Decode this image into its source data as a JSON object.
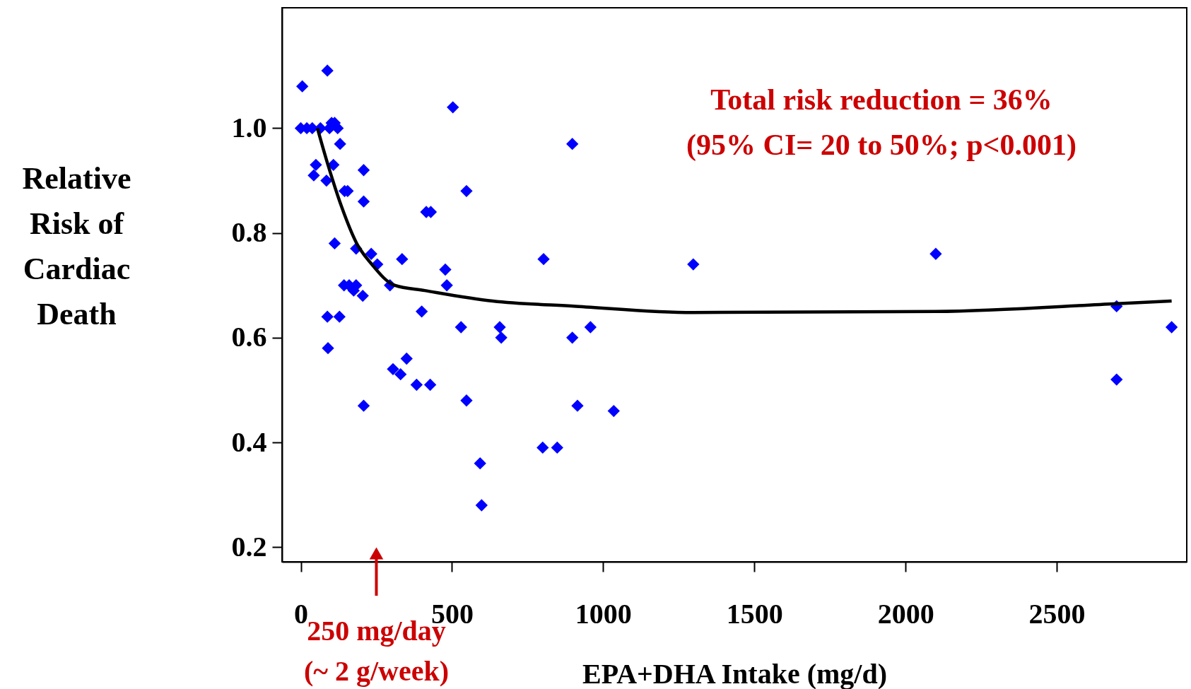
{
  "chart_data": {
    "type": "scatter",
    "xlabel": "EPA+DHA Intake (mg/d)",
    "ylabel": "Relative Risk of Cardiac Death",
    "xlim": [
      -62,
      2930
    ],
    "ylim": [
      0.172,
      1.23
    ],
    "xticks": [
      0,
      500,
      1000,
      1500,
      2000,
      2500
    ],
    "yticks": [
      0.2,
      0.4,
      0.6,
      0.8,
      {
        "value": 1,
        "label": "1.0"
      }
    ],
    "grid": false,
    "marker": "diamond",
    "series": [
      {
        "color": "#0000ff",
        "x": [
          0,
          5,
          20,
          38,
          65,
          88,
          95,
          112,
          122,
          102,
          130,
          50,
          43,
          108,
          85,
          208,
          145,
          155,
          208,
          112,
          183,
          233,
          253,
          335,
          143,
          160,
          183,
          175,
          205,
          295,
          88,
          128,
          90,
          208,
          305,
          330,
          350,
          383,
          428,
          400,
          415,
          430,
          478,
          483,
          503,
          530,
          548,
          548,
          593,
          598,
          658,
          663,
          803,
          800,
          848,
          898,
          898,
          915,
          958,
          1035,
          1298,
          2100,
          2698,
          2698,
          2880
        ],
        "values": [
          1.0,
          1.08,
          1.0,
          1.0,
          1.0,
          1.11,
          1.0,
          1.01,
          1.0,
          1.01,
          0.97,
          0.93,
          0.91,
          0.93,
          0.9,
          0.92,
          0.88,
          0.88,
          0.86,
          0.78,
          0.77,
          0.76,
          0.74,
          0.75,
          0.7,
          0.7,
          0.7,
          0.69,
          0.68,
          0.7,
          0.64,
          0.64,
          0.58,
          0.47,
          0.54,
          0.53,
          0.56,
          0.51,
          0.51,
          0.65,
          0.84,
          0.84,
          0.73,
          0.7,
          1.04,
          0.62,
          0.88,
          0.48,
          0.36,
          0.28,
          0.62,
          0.6,
          0.75,
          0.39,
          0.39,
          0.97,
          0.6,
          0.47,
          0.62,
          0.46,
          0.74,
          0.76,
          0.66,
          0.52,
          0.62
        ]
      },
      {
        "type": "line",
        "color": "#000000",
        "marker": "none",
        "line_style": "solid",
        "x": [
          55,
          90,
          135,
          185,
          235,
          310,
          410,
          635,
          910,
          1298,
          2100,
          2698,
          2880
        ],
        "values": [
          1.0,
          0.93,
          0.85,
          0.78,
          0.74,
          0.7,
          0.69,
          0.67,
          0.66,
          0.648,
          0.65,
          0.665,
          0.67
        ]
      }
    ],
    "annotations": [
      "Total risk reduction = 36%",
      "(95% CI= 20 to 50%; p<0.001)",
      {
        "text": "250 mg/day (~ 2 g/week)",
        "x": 250
      }
    ]
  }
}
